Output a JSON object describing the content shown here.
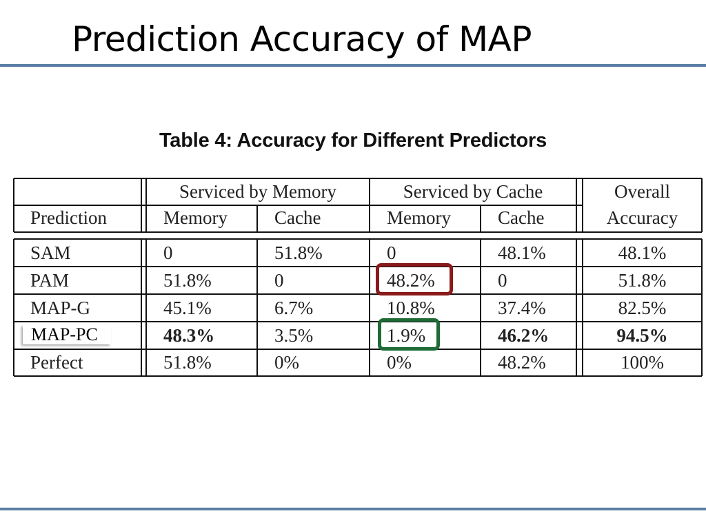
{
  "slide": {
    "title": "Prediction Accuracy of MAP",
    "rule_color": "#5b7fa6"
  },
  "table": {
    "caption": "Table 4: Accuracy for Different Predictors",
    "group_headers": {
      "memory": "Serviced by Memory",
      "cache": "Serviced by Cache",
      "overall_line1": "Overall",
      "overall_line2": "Accuracy"
    },
    "sub_headers": {
      "prediction": "Prediction",
      "mem_memory": "Memory",
      "mem_cache": "Cache",
      "cache_memory": "Memory",
      "cache_cache": "Cache"
    },
    "rows": [
      {
        "name": "SAM",
        "mem_memory": "0",
        "mem_cache": "51.8%",
        "cache_memory": "0",
        "cache_cache": "48.1%",
        "overall": "48.1%"
      },
      {
        "name": "PAM",
        "mem_memory": "51.8%",
        "mem_cache": "0",
        "cache_memory": "48.2%",
        "cache_cache": "0",
        "overall": "51.8%"
      },
      {
        "name": "MAP-G",
        "mem_memory": "45.1%",
        "mem_cache": "6.7%",
        "cache_memory": "10.8%",
        "cache_cache": "37.4%",
        "overall": "82.5%"
      },
      {
        "name": "MAP-PC",
        "mem_memory": "48.3%",
        "mem_cache": "3.5%",
        "cache_memory": "1.9%",
        "cache_cache": "46.2%",
        "overall": "94.5%"
      },
      {
        "name": "Perfect",
        "mem_memory": "51.8%",
        "mem_cache": "0%",
        "cache_memory": "0%",
        "cache_cache": "48.2%",
        "overall": "100%"
      }
    ],
    "bold_cells": [
      "3.mem_memory",
      "3.cache_cache",
      "3.overall"
    ]
  },
  "annotations": {
    "red_box_color": "#8b1a1a",
    "green_box_color": "#1f6b36",
    "overlay_label": "MAP-PC"
  }
}
